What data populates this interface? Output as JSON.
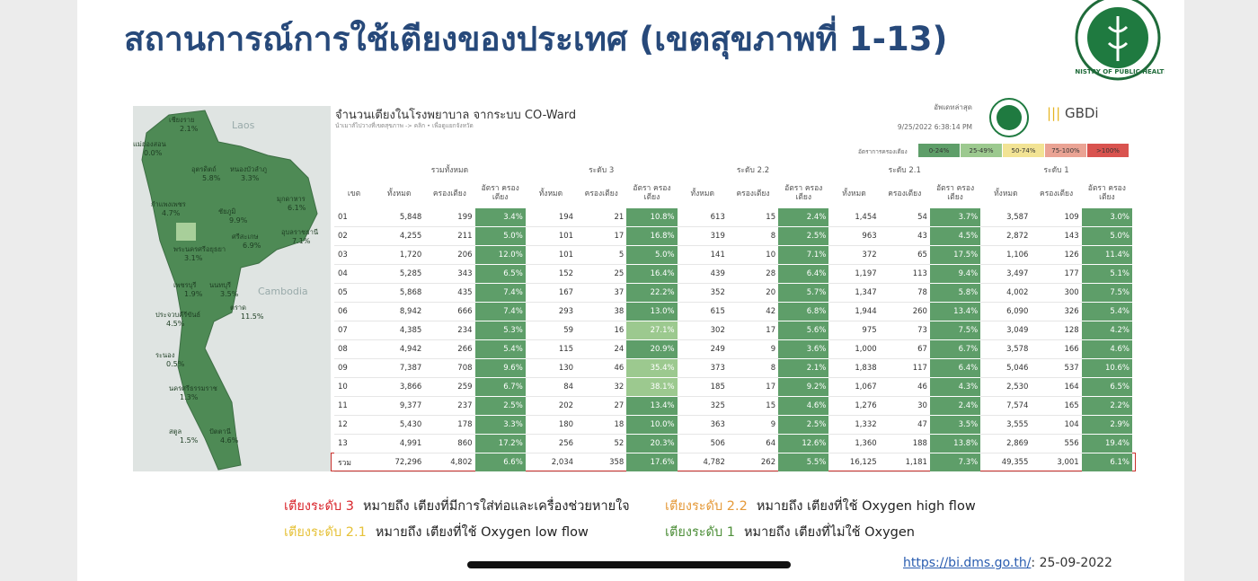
{
  "header": {
    "title": "สถานการณ์การใช้เตียงของประเทศ (เขตสุขภาพที่ 1-13)",
    "logo_text": "MINISTRY OF PUBLIC HEALTH"
  },
  "map": {
    "countries": [
      "Laos",
      "Cambodia"
    ],
    "labels": [
      {
        "name": "เชียงราย",
        "value": "2.1%"
      },
      {
        "name": "แม่ฮ่องสอน",
        "value": "0.0%"
      },
      {
        "name": "อุตรดิตถ์",
        "value": "5.8%"
      },
      {
        "name": "หนองบัวลำภู",
        "value": "3.3%"
      },
      {
        "name": "กำแพงเพชร",
        "value": "4.7%"
      },
      {
        "name": "ชัยภูมิ",
        "value": "9.9%"
      },
      {
        "name": "มุกดาหาร",
        "value": "6.1%"
      },
      {
        "name": "ศรีสะเกษ",
        "value": "6.9%"
      },
      {
        "name": "อุบลราชธานี",
        "value": "7.1%"
      },
      {
        "name": "พระนครศรีอยุธยา",
        "value": "3.1%"
      },
      {
        "name": "เพชรบุรี",
        "value": "1.9%"
      },
      {
        "name": "นนทบุรี",
        "value": "3.5%"
      },
      {
        "name": "ตราด",
        "value": "11.5%"
      },
      {
        "name": "ประจวบคีรีขันธ์",
        "value": "4.5%"
      },
      {
        "name": "ระนอง",
        "value": "0.5%"
      },
      {
        "name": "นครศรีธรรมราช",
        "value": "1.3%"
      },
      {
        "name": "สตูล",
        "value": "1.5%"
      },
      {
        "name": "ปัตตานี",
        "value": "4.6%"
      }
    ]
  },
  "dashboard": {
    "title": "จำนวนเตียงในโรงพยาบาล จากระบบ CO-Ward",
    "subtitle": "นำเมาส์ไปวางที่เขตสุขภาพ -> คลิก • เพื่อดูแยกจังหวัด",
    "update_label": "อัพเดทล่าสุด",
    "update_time": "9/25/2022 6:38:14 PM",
    "brand": "GBDi",
    "legend": {
      "label": "อัตราการครองเตียง",
      "items": [
        {
          "label": "0-24%",
          "color": "#5e9e69"
        },
        {
          "label": "25-49%",
          "color": "#9cc98f"
        },
        {
          "label": "50-74%",
          "color": "#f2e394"
        },
        {
          "label": "75-100%",
          "color": "#eaa394"
        },
        {
          "label": ">100%",
          "color": "#d9534f"
        }
      ]
    },
    "region_header": "เขต",
    "groups": [
      "รวมทั้งหมด",
      "ระดับ 3",
      "ระดับ 2.2",
      "ระดับ 2.1",
      "ระดับ 1"
    ],
    "columns": [
      "ทั้งหมด",
      "ครองเตียง",
      "อัตรา ครองเตียง"
    ],
    "rows": [
      [
        "01",
        "5,848",
        "199",
        "3.4%",
        "194",
        "21",
        "10.8%",
        "613",
        "15",
        "2.4%",
        "1,454",
        "54",
        "3.7%",
        "3,587",
        "109",
        "3.0%"
      ],
      [
        "02",
        "4,255",
        "211",
        "5.0%",
        "101",
        "17",
        "16.8%",
        "319",
        "8",
        "2.5%",
        "963",
        "43",
        "4.5%",
        "2,872",
        "143",
        "5.0%"
      ],
      [
        "03",
        "1,720",
        "206",
        "12.0%",
        "101",
        "5",
        "5.0%",
        "141",
        "10",
        "7.1%",
        "372",
        "65",
        "17.5%",
        "1,106",
        "126",
        "11.4%"
      ],
      [
        "04",
        "5,285",
        "343",
        "6.5%",
        "152",
        "25",
        "16.4%",
        "439",
        "28",
        "6.4%",
        "1,197",
        "113",
        "9.4%",
        "3,497",
        "177",
        "5.1%"
      ],
      [
        "05",
        "5,868",
        "435",
        "7.4%",
        "167",
        "37",
        "22.2%",
        "352",
        "20",
        "5.7%",
        "1,347",
        "78",
        "5.8%",
        "4,002",
        "300",
        "7.5%"
      ],
      [
        "06",
        "8,942",
        "666",
        "7.4%",
        "293",
        "38",
        "13.0%",
        "615",
        "42",
        "6.8%",
        "1,944",
        "260",
        "13.4%",
        "6,090",
        "326",
        "5.4%"
      ],
      [
        "07",
        "4,385",
        "234",
        "5.3%",
        "59",
        "16",
        "27.1%",
        "302",
        "17",
        "5.6%",
        "975",
        "73",
        "7.5%",
        "3,049",
        "128",
        "4.2%"
      ],
      [
        "08",
        "4,942",
        "266",
        "5.4%",
        "115",
        "24",
        "20.9%",
        "249",
        "9",
        "3.6%",
        "1,000",
        "67",
        "6.7%",
        "3,578",
        "166",
        "4.6%"
      ],
      [
        "09",
        "7,387",
        "708",
        "9.6%",
        "130",
        "46",
        "35.4%",
        "373",
        "8",
        "2.1%",
        "1,838",
        "117",
        "6.4%",
        "5,046",
        "537",
        "10.6%"
      ],
      [
        "10",
        "3,866",
        "259",
        "6.7%",
        "84",
        "32",
        "38.1%",
        "185",
        "17",
        "9.2%",
        "1,067",
        "46",
        "4.3%",
        "2,530",
        "164",
        "6.5%"
      ],
      [
        "11",
        "9,377",
        "237",
        "2.5%",
        "202",
        "27",
        "13.4%",
        "325",
        "15",
        "4.6%",
        "1,276",
        "30",
        "2.4%",
        "7,574",
        "165",
        "2.2%"
      ],
      [
        "12",
        "5,430",
        "178",
        "3.3%",
        "180",
        "18",
        "10.0%",
        "363",
        "9",
        "2.5%",
        "1,332",
        "47",
        "3.5%",
        "3,555",
        "104",
        "2.9%"
      ],
      [
        "13",
        "4,991",
        "860",
        "17.2%",
        "256",
        "52",
        "20.3%",
        "506",
        "64",
        "12.6%",
        "1,360",
        "188",
        "13.8%",
        "2,869",
        "556",
        "19.4%"
      ]
    ],
    "total": [
      "รวม",
      "72,296",
      "4,802",
      "6.6%",
      "2,034",
      "358",
      "17.6%",
      "4,782",
      "262",
      "5.5%",
      "16,125",
      "1,181",
      "7.3%",
      "49,355",
      "3,001",
      "6.1%"
    ]
  },
  "notes": [
    {
      "term": "เตียงระดับ 3",
      "color": "#d9262c",
      "desc": "หมายถึง เตียงที่มีการใส่ท่อและเครื่องช่วยหายใจ"
    },
    {
      "term": "เตียงระดับ 2.2",
      "color": "#e59a3a",
      "desc": "หมายถึง เตียงที่ใช้ Oxygen high flow"
    },
    {
      "term": "เตียงระดับ 2.1",
      "color": "#e6c23a",
      "desc": "หมายถึง เตียงที่ใช้ Oxygen low flow"
    },
    {
      "term": "เตียงระดับ 1",
      "color": "#4e8f3a",
      "desc": "หมายถึง เตียงที่ไม่ใช้ Oxygen"
    }
  ],
  "source": {
    "link": "https://bi.dms.go.th/",
    "date": ": 25-09-2022"
  }
}
